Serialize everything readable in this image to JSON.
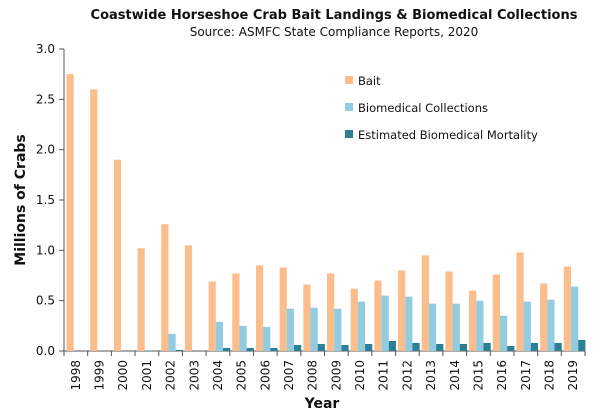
{
  "chart_data": {
    "type": "bar",
    "title": "Coastwide Horseshoe Crab Bait Landings & Biomedical Collections",
    "subtitle": "Source: ASMFC State Compliance Reports, 2020",
    "xlabel": "Year",
    "ylabel": "Millions of Crabs",
    "ylim": [
      0,
      3.0
    ],
    "yticks": [
      "0.0",
      "0.5",
      "1.0",
      "1.5",
      "2.0",
      "2.5",
      "3.0"
    ],
    "ytick_values": [
      0,
      0.5,
      1.0,
      1.5,
      2.0,
      2.5,
      3.0
    ],
    "grid": false,
    "legend_position": "top-right",
    "categories": [
      "1998",
      "1999",
      "2000",
      "2001",
      "2002",
      "2003",
      "2004",
      "2005",
      "2006",
      "2007",
      "2008",
      "2009",
      "2010",
      "2011",
      "2012",
      "2013",
      "2014",
      "2015",
      "2016",
      "2017",
      "2018",
      "2019"
    ],
    "series": [
      {
        "name": "Bait",
        "color": "#fbbd8c",
        "values": [
          2.75,
          2.6,
          1.9,
          1.02,
          1.26,
          1.05,
          0.69,
          0.77,
          0.85,
          0.83,
          0.66,
          0.77,
          0.62,
          0.7,
          0.8,
          0.95,
          0.79,
          0.6,
          0.76,
          0.98,
          0.67,
          0.84
        ]
      },
      {
        "name": "Biomedical Collections",
        "color": "#92cce0",
        "values": [
          0,
          0,
          0,
          0.01,
          0.17,
          0,
          0.29,
          0.25,
          0.24,
          0.42,
          0.43,
          0.42,
          0.49,
          0.55,
          0.54,
          0.47,
          0.47,
          0.5,
          0.35,
          0.49,
          0.51,
          0.64
        ]
      },
      {
        "name": "Estimated Biomedical Mortality",
        "color": "#2d7f96",
        "values": [
          0,
          0,
          0,
          0,
          0.01,
          0,
          0.03,
          0.03,
          0.03,
          0.06,
          0.07,
          0.06,
          0.07,
          0.1,
          0.08,
          0.07,
          0.07,
          0.08,
          0.05,
          0.08,
          0.08,
          0.11
        ]
      }
    ]
  }
}
